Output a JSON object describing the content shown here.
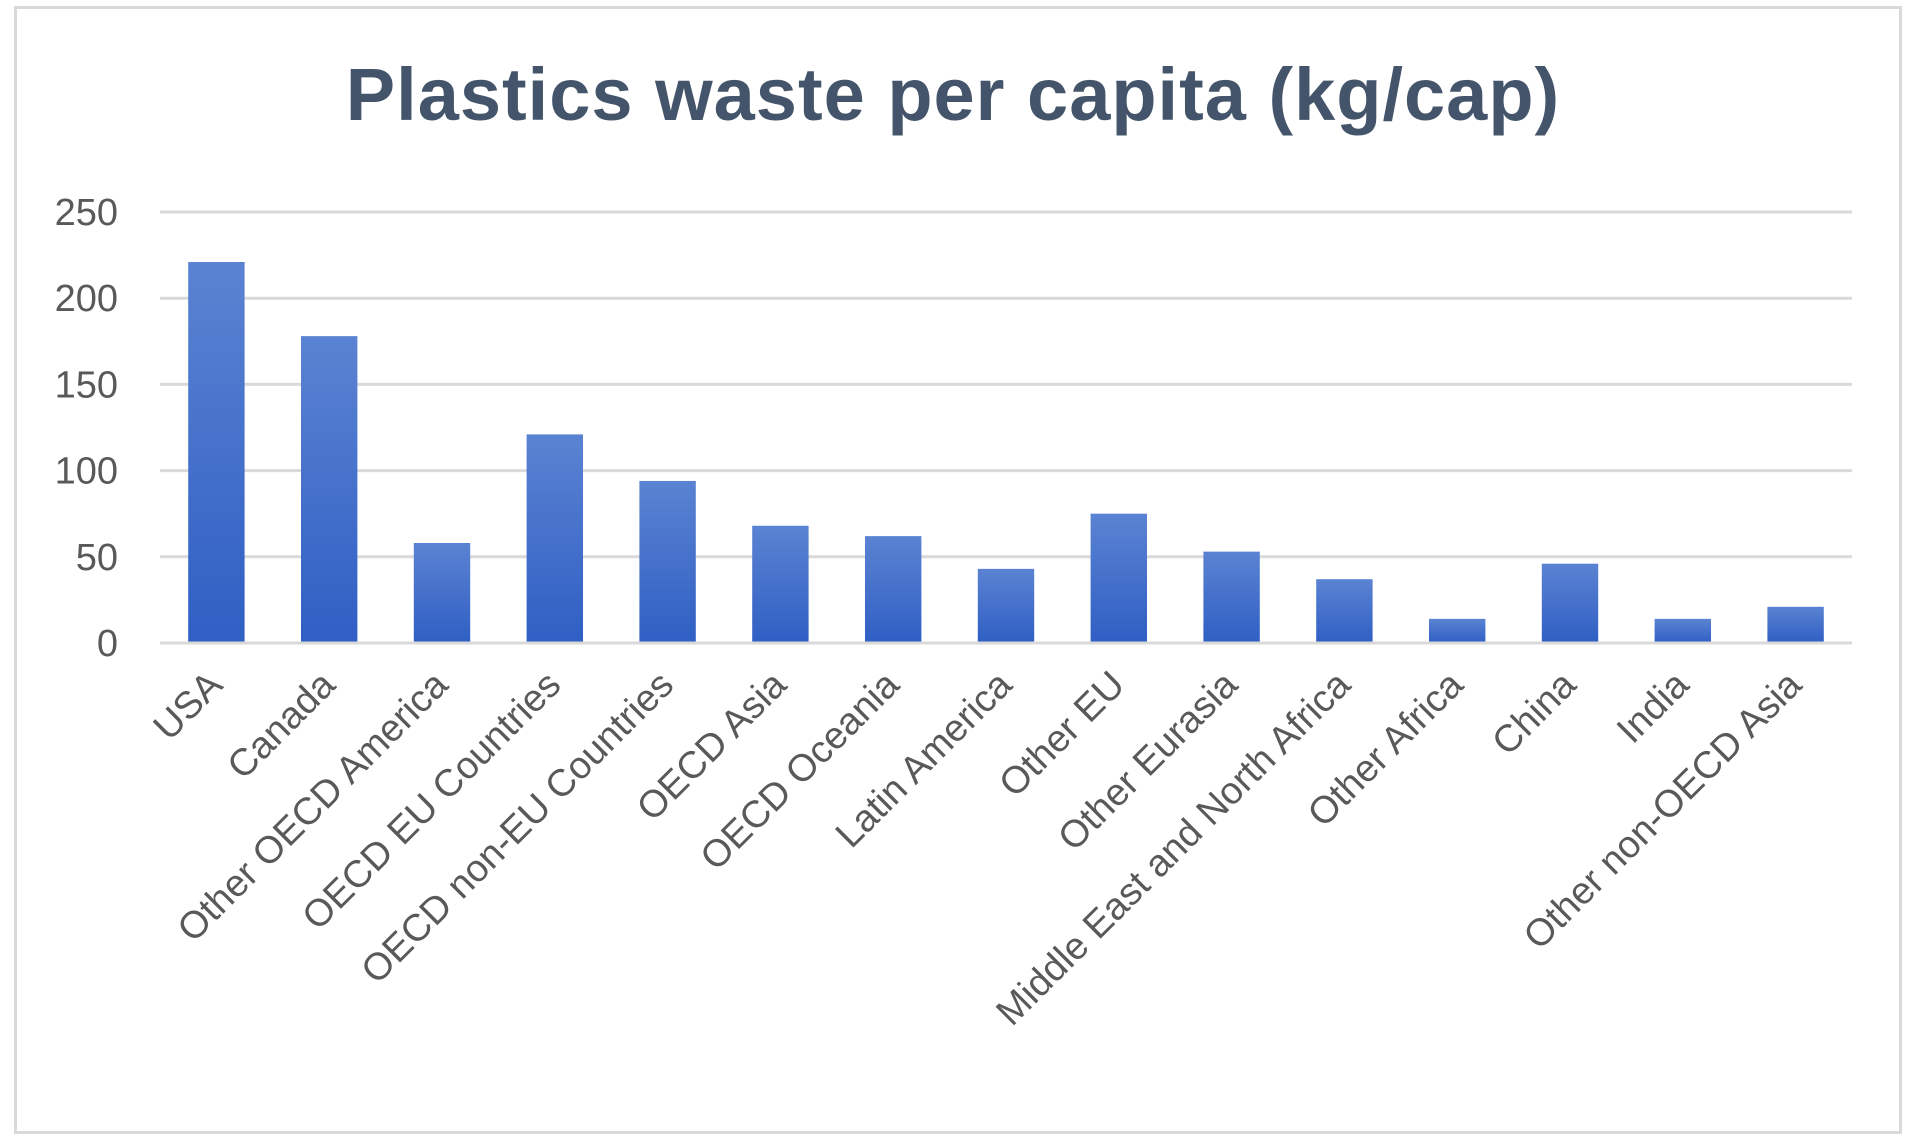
{
  "chart_data": {
    "type": "bar",
    "title": "Plastics waste per capita (kg/cap)",
    "xlabel": "",
    "ylabel": "",
    "ylim": [
      0,
      250
    ],
    "yticks": [
      0,
      50,
      100,
      150,
      200,
      250
    ],
    "grid": true,
    "legend": "none",
    "categories": [
      "USA",
      "Canada",
      "Other OECD America",
      "OECD EU Countries",
      "OECD non-EU Countries",
      "OECD Asia",
      "OECD Oceania",
      "Latin America",
      "Other EU",
      "Other Eurasia",
      "Middle East and North Africa",
      "Other Africa",
      "China",
      "India",
      "Other non-OECD Asia"
    ],
    "values": [
      221,
      178,
      58,
      121,
      94,
      68,
      62,
      43,
      75,
      53,
      37,
      14,
      46,
      14,
      21
    ],
    "colors": {
      "bar_top": "#5b83d2",
      "bar_bottom": "#2f5fc4",
      "gridline": "#d9d9d9",
      "axis_text": "#595959",
      "title": "#44546a"
    }
  }
}
